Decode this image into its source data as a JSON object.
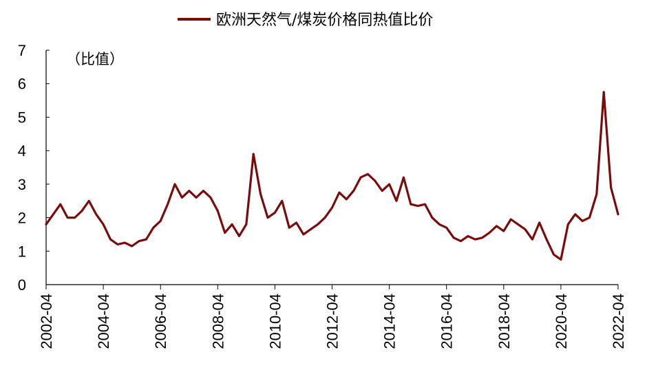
{
  "chart_data": {
    "type": "line",
    "title": "",
    "unit_label": "（比值）",
    "xlabel": "",
    "ylabel": "",
    "ylim": [
      0,
      7
    ],
    "yticks": [
      "0",
      "1",
      "2",
      "3",
      "4",
      "5",
      "6",
      "7"
    ],
    "xticks": [
      "2002-04",
      "2004-04",
      "2006-04",
      "2008-04",
      "2010-04",
      "2012-04",
      "2014-04",
      "2016-04",
      "2018-04",
      "2020-04",
      "2022-04"
    ],
    "grid": false,
    "legend_position": "top",
    "colors": {
      "series": "#7b0a0a",
      "axis": "#000000"
    },
    "series": [
      {
        "name": "欧洲天然气/煤炭价格同热值比价",
        "x": [
          "2002-04",
          "2002-07",
          "2002-10",
          "2003-01",
          "2003-04",
          "2003-07",
          "2003-10",
          "2004-01",
          "2004-04",
          "2004-07",
          "2004-10",
          "2005-01",
          "2005-04",
          "2005-07",
          "2005-10",
          "2006-01",
          "2006-04",
          "2006-07",
          "2006-10",
          "2007-01",
          "2007-04",
          "2007-07",
          "2007-10",
          "2008-01",
          "2008-04",
          "2008-07",
          "2008-10",
          "2009-01",
          "2009-04",
          "2009-07",
          "2009-10",
          "2010-01",
          "2010-04",
          "2010-07",
          "2010-10",
          "2011-01",
          "2011-04",
          "2011-07",
          "2011-10",
          "2012-01",
          "2012-04",
          "2012-07",
          "2012-10",
          "2013-01",
          "2013-04",
          "2013-07",
          "2013-10",
          "2014-01",
          "2014-04",
          "2014-07",
          "2014-10",
          "2015-01",
          "2015-04",
          "2015-07",
          "2015-10",
          "2016-01",
          "2016-04",
          "2016-07",
          "2016-10",
          "2017-01",
          "2017-04",
          "2017-07",
          "2017-10",
          "2018-01",
          "2018-04",
          "2018-07",
          "2018-10",
          "2019-01",
          "2019-04",
          "2019-07",
          "2019-10",
          "2020-01",
          "2020-04",
          "2020-07",
          "2020-10",
          "2021-01",
          "2021-04",
          "2021-07",
          "2021-10",
          "2022-01",
          "2022-04"
        ],
        "y": [
          1.8,
          2.1,
          2.4,
          2.0,
          2.0,
          2.2,
          2.5,
          2.1,
          1.8,
          1.35,
          1.2,
          1.25,
          1.15,
          1.3,
          1.35,
          1.7,
          1.9,
          2.4,
          3.0,
          2.6,
          2.8,
          2.6,
          2.8,
          2.6,
          2.2,
          1.55,
          1.8,
          1.45,
          1.8,
          3.9,
          2.7,
          2.0,
          2.15,
          2.5,
          1.7,
          1.85,
          1.5,
          1.65,
          1.8,
          2.0,
          2.3,
          2.75,
          2.55,
          2.8,
          3.2,
          3.3,
          3.1,
          2.8,
          3.0,
          2.5,
          3.2,
          2.4,
          2.35,
          2.4,
          2.0,
          1.8,
          1.7,
          1.4,
          1.3,
          1.45,
          1.35,
          1.4,
          1.55,
          1.75,
          1.6,
          1.95,
          1.8,
          1.65,
          1.35,
          1.85,
          1.35,
          0.9,
          0.75,
          1.8,
          2.1,
          1.9,
          2.0,
          2.7,
          5.75,
          2.9,
          2.1
        ]
      }
    ]
  }
}
